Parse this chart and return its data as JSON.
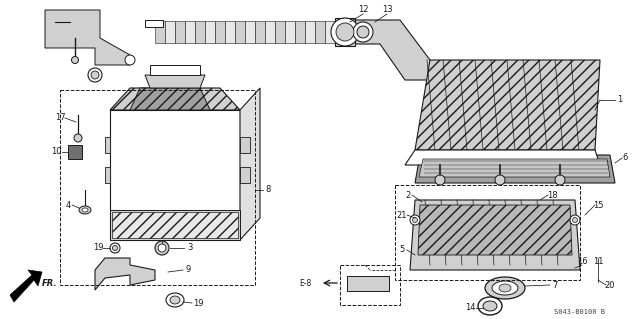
{
  "bg_color": "#ffffff",
  "fig_width": 6.4,
  "fig_height": 3.19,
  "dpi": 100,
  "watermark": "S043-B0100 B",
  "direction_label": "FR.",
  "ref_label": "E-8",
  "line_color": "#1a1a1a",
  "gray_light": "#d0d0d0",
  "gray_mid": "#a0a0a0",
  "gray_dark": "#707070",
  "label_fs": 6.0
}
